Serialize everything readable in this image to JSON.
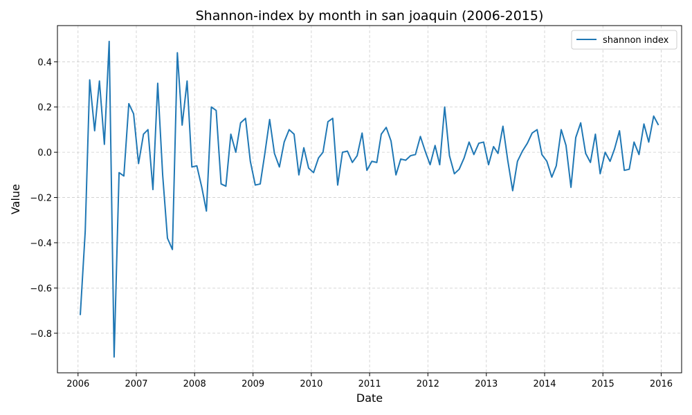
{
  "chart_data": {
    "type": "line",
    "title": "Shannon-index by month in san joaquin (2006-2015)",
    "xlabel": "Date",
    "ylabel": "Value",
    "x_ticks": [
      "2006",
      "2007",
      "2008",
      "2009",
      "2010",
      "2011",
      "2012",
      "2013",
      "2014",
      "2015",
      "2016"
    ],
    "y_ticks": [
      "−0.8",
      "−0.6",
      "−0.4",
      "−0.2",
      "0.0",
      "0.2",
      "0.4"
    ],
    "y_tick_values": [
      -0.8,
      -0.6,
      -0.4,
      -0.2,
      0.0,
      0.2,
      0.4
    ],
    "xlim": [
      "2005-08-25",
      "2016-05-08"
    ],
    "ylim": [
      -0.975,
      0.56
    ],
    "grid": true,
    "legend_position": "top-right",
    "colors": {
      "line": "#1f77b4",
      "grid": "#cccccc"
    },
    "series": [
      {
        "name": "shannon index",
        "x": [
          "2006-01",
          "2006-02",
          "2006-03",
          "2006-04",
          "2006-05",
          "2006-06",
          "2006-07",
          "2006-08",
          "2006-09",
          "2006-10",
          "2006-11",
          "2006-12",
          "2007-01",
          "2007-02",
          "2007-03",
          "2007-04",
          "2007-05",
          "2007-06",
          "2007-07",
          "2007-08",
          "2007-09",
          "2007-10",
          "2007-11",
          "2007-12",
          "2008-01",
          "2008-02",
          "2008-03",
          "2008-04",
          "2008-05",
          "2008-06",
          "2008-07",
          "2008-08",
          "2008-09",
          "2008-10",
          "2008-11",
          "2008-12",
          "2009-01",
          "2009-02",
          "2009-03",
          "2009-04",
          "2009-05",
          "2009-06",
          "2009-07",
          "2009-08",
          "2009-09",
          "2009-10",
          "2009-11",
          "2009-12",
          "2010-01",
          "2010-02",
          "2010-03",
          "2010-04",
          "2010-05",
          "2010-06",
          "2010-07",
          "2010-08",
          "2010-09",
          "2010-10",
          "2010-11",
          "2010-12",
          "2011-01",
          "2011-02",
          "2011-03",
          "2011-04",
          "2011-05",
          "2011-06",
          "2011-07",
          "2011-08",
          "2011-09",
          "2011-10",
          "2011-11",
          "2011-12",
          "2012-01",
          "2012-02",
          "2012-03",
          "2012-04",
          "2012-05",
          "2012-06",
          "2012-07",
          "2012-08",
          "2012-09",
          "2012-10",
          "2012-11",
          "2012-12",
          "2013-01",
          "2013-02",
          "2013-03",
          "2013-04",
          "2013-05",
          "2013-06",
          "2013-07",
          "2013-08",
          "2013-09",
          "2013-10",
          "2013-11",
          "2013-12",
          "2014-01",
          "2014-02",
          "2014-03",
          "2014-04",
          "2014-05",
          "2014-06",
          "2014-07",
          "2014-08",
          "2014-09",
          "2014-10",
          "2014-11",
          "2014-12",
          "2015-01",
          "2015-02",
          "2015-03",
          "2015-04",
          "2015-05",
          "2015-06",
          "2015-07",
          "2015-08",
          "2015-09",
          "2015-10",
          "2015-11",
          "2015-12"
        ],
        "values": [
          -0.72,
          -0.35,
          0.32,
          0.095,
          0.315,
          0.035,
          0.49,
          -0.905,
          -0.09,
          -0.105,
          0.215,
          0.17,
          -0.05,
          0.08,
          0.1,
          -0.165,
          0.305,
          -0.1,
          -0.38,
          -0.43,
          0.44,
          0.12,
          0.315,
          -0.065,
          -0.06,
          -0.155,
          -0.26,
          0.2,
          0.185,
          -0.14,
          -0.15,
          0.08,
          0.0,
          0.13,
          0.15,
          -0.04,
          -0.145,
          -0.14,
          -0.01,
          0.145,
          -0.005,
          -0.065,
          0.045,
          0.1,
          0.08,
          -0.1,
          0.02,
          -0.07,
          -0.09,
          -0.025,
          0.0,
          0.135,
          0.15,
          -0.145,
          0.0,
          0.005,
          -0.045,
          -0.015,
          0.085,
          -0.08,
          -0.04,
          -0.045,
          0.08,
          0.11,
          0.05,
          -0.1,
          -0.03,
          -0.035,
          -0.015,
          -0.01,
          0.07,
          0.005,
          -0.055,
          0.03,
          -0.055,
          0.2,
          -0.015,
          -0.095,
          -0.075,
          -0.025,
          0.045,
          -0.01,
          0.04,
          0.045,
          -0.055,
          0.025,
          -0.005,
          0.115,
          -0.035,
          -0.17,
          -0.04,
          0.005,
          0.04,
          0.085,
          0.1,
          -0.01,
          -0.04,
          -0.11,
          -0.06,
          0.1,
          0.03,
          -0.155,
          0.065,
          0.13,
          -0.005,
          -0.045,
          0.08,
          -0.095,
          0.0,
          -0.04,
          0.015,
          0.095,
          -0.08,
          -0.075,
          0.045,
          -0.01,
          0.125,
          0.045,
          0.16,
          0.12
        ]
      }
    ]
  }
}
